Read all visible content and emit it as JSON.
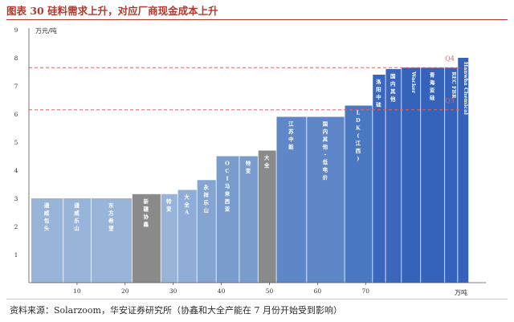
{
  "figure": {
    "title": "图表 30 硅料需求上升，对应厂商现金成本上升",
    "source": "资料来源：Solarzoom，华安证券研究所（协鑫和大全产能在 7 月份开始受到影响）"
  },
  "chart_data": {
    "type": "bar",
    "variant": "cost-supply-curve",
    "xlabel": "万吨",
    "ylabel": "万元/吨",
    "xlim": [
      0,
      80
    ],
    "ylim": [
      0,
      9
    ],
    "xticks": [
      10,
      20,
      30,
      40,
      50,
      60,
      70
    ],
    "yticks": [
      1,
      2,
      3,
      4,
      5,
      6,
      7,
      8,
      9
    ],
    "reference_lines": [
      {
        "label": "Q4",
        "value": 7.65,
        "color": "#e06660"
      },
      {
        "label": "Q3",
        "value": 6.15,
        "color": "#e06660"
      }
    ],
    "bars": [
      {
        "label": "通威包头",
        "x0": 0.5,
        "x1": 7.2,
        "value": 3.0,
        "color": "#99b4d9"
      },
      {
        "label": "通威乐山",
        "x0": 7.2,
        "x1": 13.0,
        "value": 3.0,
        "color": "#99b4d9"
      },
      {
        "label": "东方希望",
        "x0": 13.0,
        "x1": 21.5,
        "value": 3.0,
        "color": "#99b4d9"
      },
      {
        "label": "新疆协鑫",
        "x0": 21.5,
        "x1": 27.5,
        "value": 3.15,
        "color": "#8a8a8a"
      },
      {
        "label": "特变",
        "x0": 27.5,
        "x1": 31.0,
        "value": 3.15,
        "color": "#99b4d9"
      },
      {
        "label": "大全A",
        "x0": 31.0,
        "x1": 35.0,
        "value": 3.3,
        "color": "#8fadd6"
      },
      {
        "label": "永祥乐山",
        "x0": 35.0,
        "x1": 39.0,
        "value": 3.65,
        "color": "#84a5d2"
      },
      {
        "label": "OCI马来西亚",
        "x0": 39.0,
        "x1": 43.8,
        "value": 4.5,
        "color": "#7a9ccd"
      },
      {
        "label": "特变",
        "x0": 43.8,
        "x1": 47.7,
        "value": 4.5,
        "color": "#7a9ccd"
      },
      {
        "label": "大全",
        "x0": 47.7,
        "x1": 51.5,
        "value": 4.7,
        "color": "#8a8a8a"
      },
      {
        "label": "江苏中能",
        "x0": 51.5,
        "x1": 57.8,
        "value": 5.9,
        "color": "#5f86c7"
      },
      {
        "label": "国内其他-低电价",
        "x0": 57.8,
        "x1": 65.7,
        "value": 5.9,
        "color": "#5f86c7"
      },
      {
        "label": "LDK(江西)",
        "x0": 65.7,
        "x1": 71.5,
        "value": 6.3,
        "color": "#4a77c2"
      },
      {
        "label": "洛阳中硅",
        "x0": 71.5,
        "x1": 74.2,
        "value": 7.4,
        "color": "#3a66bd"
      },
      {
        "label": "国内其他",
        "x0": 74.2,
        "x1": 77.5,
        "value": 7.6,
        "color": "#3a66bd"
      },
      {
        "label": "Wacker",
        "x0": 77.5,
        "x1": 81.5,
        "value": 7.65,
        "color": "#3562bb"
      },
      {
        "label": "青海亚硅",
        "x0": 81.5,
        "x1": 86.5,
        "value": 7.65,
        "color": "#3562bb"
      },
      {
        "label": "REC FBR",
        "x0": 86.5,
        "x1": 89.2,
        "value": 7.65,
        "color": "#3562bb"
      },
      {
        "label": "Hanwha Chemical",
        "x0": 89.2,
        "x1": 91.5,
        "value": 8.0,
        "color": "#3562bb"
      }
    ]
  }
}
